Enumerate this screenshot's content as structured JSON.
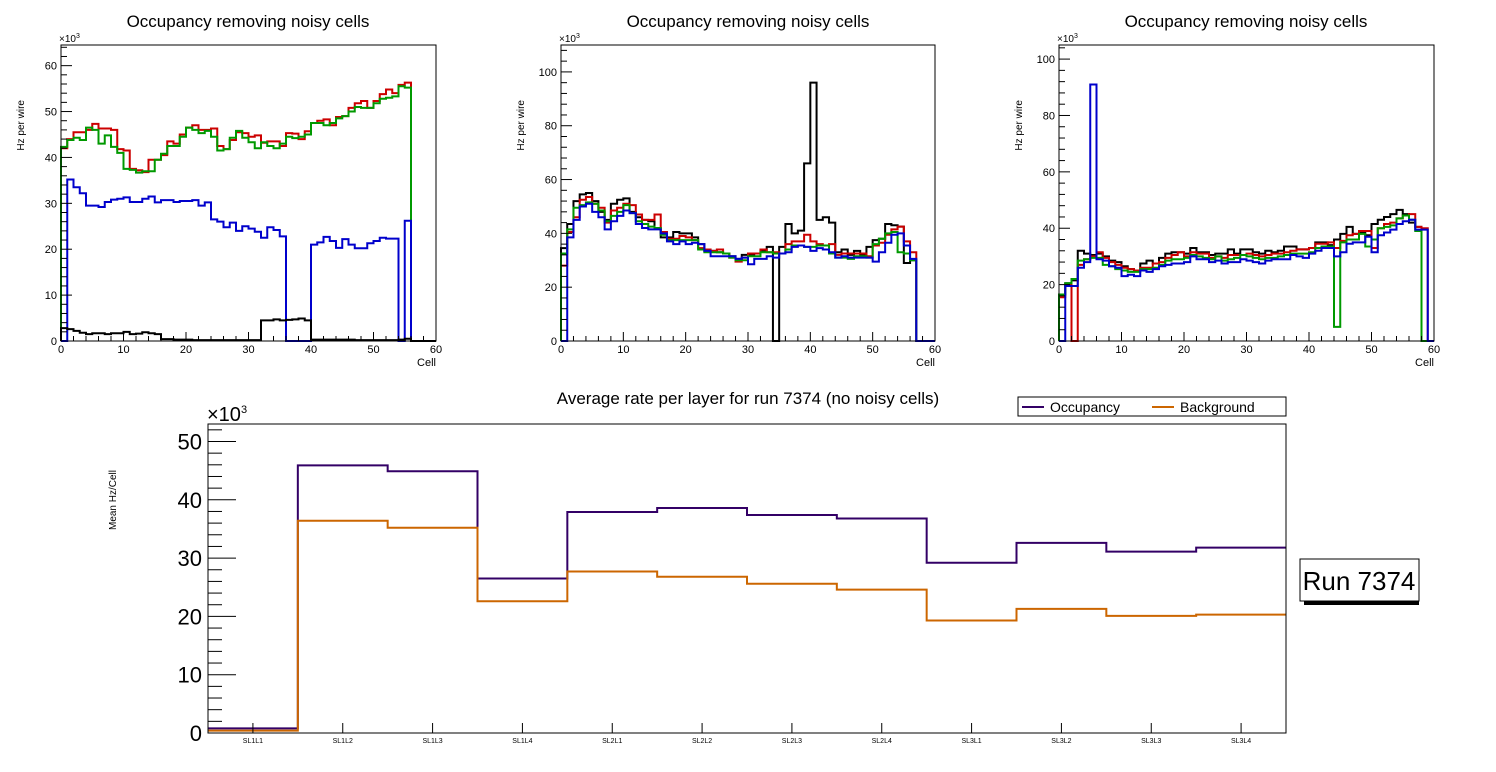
{
  "chart_data": [
    {
      "type": "line",
      "style": "step-histogram",
      "title": "Occupancy removing noisy cells",
      "xlabel": "Cell",
      "ylabel": "Hz per wire",
      "y_multiplier": "×10³",
      "xlim": [
        0,
        60
      ],
      "ylim": [
        0,
        64.5
      ],
      "xticks": [
        0,
        10,
        20,
        30,
        40,
        50,
        60
      ],
      "yticks": [
        0,
        10,
        20,
        30,
        40,
        50,
        60
      ],
      "series": [
        {
          "name": "red",
          "color": "#cc0000",
          "values": [
            42,
            44,
            45.5,
            45.5,
            46,
            47.3,
            46.3,
            46.3,
            46,
            41.8,
            41.5,
            37.5,
            37.2,
            36.8,
            39.5,
            39.5,
            40.5,
            43.5,
            43,
            45,
            46.5,
            47,
            46,
            46,
            46.3,
            42.5,
            41.8,
            43.8,
            45.5,
            45.3,
            44.5,
            44.8,
            43.2,
            43.5,
            43.5,
            42.5,
            45.3,
            45.2,
            44,
            45.7,
            47.5,
            48,
            48.3,
            47,
            48.8,
            49,
            50.8,
            51.8,
            52.3,
            50.8,
            52.3,
            53.8,
            54.8,
            54,
            55.8,
            56.3,
            0,
            0,
            0,
            0
          ]
        },
        {
          "name": "green",
          "color": "#009900",
          "values": [
            42.3,
            43.8,
            44.3,
            43.8,
            46.5,
            46,
            43,
            44.8,
            42.3,
            41,
            37.5,
            37.3,
            36.7,
            37,
            37,
            39.5,
            40.8,
            42.5,
            42.5,
            44.5,
            46.5,
            46,
            45.3,
            45.8,
            44.5,
            41.5,
            41.8,
            44.3,
            45.8,
            44.3,
            43.3,
            42,
            43.3,
            42.5,
            42,
            43,
            44.5,
            44.2,
            44.5,
            45,
            47.5,
            47.5,
            47,
            47.5,
            48.5,
            49,
            50,
            51,
            50.8,
            50.8,
            51.8,
            52.8,
            53,
            53.3,
            55.5,
            55.2,
            0,
            0,
            0,
            0
          ]
        },
        {
          "name": "blue",
          "color": "#0000cc",
          "values": [
            0,
            35.2,
            33.5,
            32.2,
            29.5,
            29.5,
            29.2,
            30.3,
            30.8,
            31,
            31.3,
            30.3,
            30.3,
            31,
            31.5,
            30.2,
            30.7,
            30.7,
            30.3,
            30.5,
            30.5,
            30.7,
            29.5,
            30.2,
            26.5,
            26,
            24.8,
            25.8,
            24,
            25,
            24.5,
            23.8,
            22.5,
            24.8,
            24.2,
            22.8,
            0,
            0,
            0,
            0,
            21,
            21.5,
            22.7,
            21.8,
            20.3,
            22.2,
            21,
            20.2,
            20.2,
            21.3,
            21.8,
            22.5,
            22.3,
            22.3,
            0,
            26.2,
            0,
            0,
            0,
            0
          ]
        },
        {
          "name": "black",
          "color": "#000000",
          "values": [
            2.8,
            2.6,
            2.2,
            1.8,
            1.5,
            1.7,
            1.7,
            1.5,
            1.7,
            1.7,
            2,
            1.5,
            1.6,
            1.9,
            1.7,
            1.5,
            0.4,
            0.4,
            0.3,
            0.3,
            0.3,
            0.2,
            0.2,
            0.2,
            0.2,
            0.2,
            0.2,
            0.2,
            0.2,
            0.2,
            0.2,
            0.2,
            4.5,
            4.5,
            4.7,
            4.5,
            4.6,
            4.7,
            4.9,
            4.5,
            0.3,
            0.3,
            0.3,
            0.3,
            0.3,
            0.3,
            0.3,
            0.2,
            0.2,
            0.2,
            0.2,
            0.2,
            0.2,
            0.2,
            0.3,
            0.5,
            0,
            0,
            0,
            0
          ]
        }
      ]
    },
    {
      "type": "line",
      "style": "step-histogram",
      "title": "Occupancy removing noisy cells",
      "xlabel": "Cell",
      "ylabel": "Hz per wire",
      "y_multiplier": "×10³",
      "xlim": [
        0,
        60
      ],
      "ylim": [
        0,
        110
      ],
      "xticks": [
        0,
        10,
        20,
        30,
        40,
        50,
        60
      ],
      "yticks": [
        0,
        20,
        40,
        60,
        80,
        100
      ],
      "series": [
        {
          "name": "black",
          "color": "#000000",
          "values": [
            34.5,
            43.5,
            52,
            54.5,
            55,
            52,
            48,
            45,
            51,
            52.5,
            53,
            48,
            46,
            45,
            44.5,
            42,
            38.5,
            38.5,
            40.5,
            40,
            40,
            38.5,
            36,
            33.5,
            33.5,
            33,
            32.5,
            31.5,
            30.5,
            32,
            32,
            32.5,
            33.5,
            35,
            0,
            35,
            43.5,
            40,
            41,
            66,
            96,
            45,
            46,
            44,
            33,
            34,
            32,
            33.5,
            32,
            35,
            37.5,
            38,
            43.5,
            43,
            42.5,
            29,
            30,
            0,
            0,
            0
          ]
        },
        {
          "name": "red",
          "color": "#cc0000",
          "values": [
            28,
            40.5,
            46,
            52.5,
            53.5,
            51,
            49.5,
            44,
            48.5,
            49.5,
            51,
            50.5,
            47,
            45,
            45,
            47,
            40.5,
            38,
            38,
            39,
            38.5,
            37.5,
            34.5,
            34,
            33.5,
            34,
            32.5,
            31,
            29.5,
            31,
            32.5,
            32.5,
            34,
            33,
            33,
            32.5,
            36,
            37,
            37,
            39.5,
            37,
            36,
            35.5,
            36,
            32,
            32.5,
            32.5,
            32.5,
            32.5,
            31.5,
            35.5,
            36.5,
            39.5,
            41.5,
            42.5,
            37,
            33,
            0,
            0,
            0
          ]
        },
        {
          "name": "green",
          "color": "#009900",
          "values": [
            32.5,
            41.5,
            49.5,
            50.5,
            51.5,
            51,
            48.5,
            44.5,
            46.5,
            48,
            50.5,
            47.5,
            44.5,
            43.5,
            42.5,
            42,
            39.5,
            37.5,
            37.5,
            37.5,
            37.5,
            37.5,
            34,
            33,
            33,
            33,
            32.5,
            31,
            30,
            30,
            31.5,
            31.5,
            33,
            33,
            32.5,
            32.5,
            34,
            35.5,
            35.5,
            35,
            35,
            35.5,
            35.5,
            32.5,
            31,
            31,
            30.5,
            31.5,
            31.5,
            31,
            36,
            38,
            40,
            40.5,
            33,
            32.5,
            30,
            0,
            0,
            0
          ]
        },
        {
          "name": "blue",
          "color": "#0000cc",
          "values": [
            0,
            38.5,
            45,
            50,
            51,
            48,
            46,
            41.5,
            44.5,
            46.5,
            48.5,
            47.5,
            43.5,
            42,
            41.5,
            41.5,
            40,
            37,
            36,
            37,
            36,
            36.5,
            36,
            33.5,
            31.5,
            31.5,
            31.5,
            31.5,
            30.5,
            31,
            28.5,
            30.5,
            30.5,
            31.5,
            31,
            32.5,
            33,
            35,
            35.5,
            35,
            33.5,
            34.5,
            34,
            33,
            31,
            31.5,
            31,
            31,
            31,
            31,
            29.5,
            33,
            36.5,
            39.5,
            40,
            35.5,
            30.5,
            0,
            0,
            0
          ]
        }
      ]
    },
    {
      "type": "line",
      "style": "step-histogram",
      "title": "Occupancy removing noisy cells",
      "xlabel": "Cell",
      "ylabel": "Hz per wire",
      "y_multiplier": "×10³",
      "xlim": [
        0,
        60
      ],
      "ylim": [
        0,
        105
      ],
      "xticks": [
        0,
        10,
        20,
        30,
        40,
        50,
        60
      ],
      "yticks": [
        0,
        20,
        40,
        60,
        80,
        100
      ],
      "series": [
        {
          "name": "black",
          "color": "#000000",
          "values": [
            16.5,
            20.5,
            21.5,
            32,
            31,
            30.5,
            31,
            30,
            28.5,
            28,
            26.5,
            25.5,
            25,
            27.5,
            28.5,
            27.5,
            29.5,
            31,
            31.5,
            31.5,
            31,
            33,
            31.5,
            31.5,
            30.5,
            31,
            31,
            32.5,
            31,
            32.5,
            32.5,
            31.5,
            31,
            32,
            31.5,
            32,
            33.5,
            33.5,
            32.5,
            32.5,
            33,
            35,
            35,
            34,
            36,
            38,
            40.5,
            38,
            38.5,
            37.5,
            41.5,
            43,
            44,
            45,
            46.5,
            45,
            42,
            40.5,
            0,
            0
          ]
        },
        {
          "name": "red",
          "color": "#cc0000",
          "values": [
            15.5,
            20,
            0,
            27,
            29,
            30,
            31.5,
            29.5,
            28,
            27,
            26,
            25.5,
            25,
            26,
            26,
            27.5,
            28,
            29.5,
            30.5,
            31.5,
            30,
            31.5,
            31,
            31,
            29.5,
            30,
            29.5,
            30.5,
            30.5,
            30.5,
            31,
            30.5,
            30,
            30.5,
            31,
            31,
            31.5,
            32,
            32.5,
            32.5,
            33,
            34.5,
            34.5,
            35,
            33,
            35.5,
            37.5,
            38,
            39,
            39,
            33,
            40,
            41.5,
            42,
            43.5,
            44.5,
            45,
            40.5,
            40,
            0
          ]
        },
        {
          "name": "green",
          "color": "#009900",
          "values": [
            16.5,
            20.5,
            22,
            28.5,
            29,
            29.5,
            29.5,
            27,
            26.5,
            25.5,
            25,
            24.5,
            24.5,
            25.5,
            25.5,
            26,
            27,
            28.5,
            29,
            29,
            29.5,
            30.5,
            30,
            29.5,
            29,
            30,
            28.5,
            29,
            29.5,
            30.5,
            30,
            29.5,
            29,
            29.5,
            29.5,
            30,
            30.5,
            31,
            31,
            31,
            31.5,
            33,
            33.5,
            33.5,
            5,
            35,
            36,
            36,
            38,
            33.5,
            36,
            40,
            40.5,
            41,
            43.5,
            44.5,
            43,
            39,
            0,
            0
          ]
        },
        {
          "name": "blue",
          "color": "#0000cc",
          "values": [
            0,
            19.5,
            19.5,
            26,
            28,
            91,
            29,
            28.5,
            26.5,
            26,
            23,
            23.5,
            23,
            25,
            24.5,
            25.5,
            26.5,
            27,
            27.5,
            27.5,
            28,
            30,
            29,
            29,
            28,
            28.5,
            27.5,
            28,
            28,
            29,
            28.5,
            28,
            27.5,
            28.5,
            29,
            29,
            29,
            30.5,
            30,
            29.5,
            31,
            32,
            33,
            33,
            30,
            31.5,
            34.5,
            35,
            35,
            37,
            31.5,
            37.5,
            38.5,
            39.5,
            41.5,
            42.5,
            43,
            39.5,
            39.5,
            0
          ]
        }
      ]
    },
    {
      "type": "line",
      "style": "step-histogram",
      "title": "Average rate per layer for run 7374 (no noisy cells)",
      "xlabel": "",
      "ylabel": "Mean Hz/Cell",
      "y_multiplier": "×10³",
      "categories": [
        "SL1L1",
        "SL1L2",
        "SL1L3",
        "SL1L4",
        "SL2L1",
        "SL2L2",
        "SL2L3",
        "SL2L4",
        "SL3L1",
        "SL3L2",
        "SL3L3",
        "SL3L4"
      ],
      "ylim": [
        0,
        53
      ],
      "yticks": [
        0,
        10,
        20,
        30,
        40,
        50
      ],
      "legend": {
        "placement": "top-right",
        "entries": [
          "Occupancy",
          "Background"
        ]
      },
      "series": [
        {
          "name": "Occupancy",
          "color": "#330066",
          "values": [
            0.8,
            45.9,
            44.9,
            26.5,
            37.9,
            38.6,
            37.4,
            36.8,
            29.2,
            32.6,
            31.1,
            31.8
          ]
        },
        {
          "name": "Background",
          "color": "#cc6600",
          "values": [
            0.4,
            36.4,
            35.2,
            22.6,
            27.7,
            26.8,
            25.6,
            24.6,
            19.3,
            21.3,
            20.1,
            20.3
          ]
        }
      ],
      "annotation": "Run 7374"
    }
  ],
  "labels": {
    "multiplier": "×10",
    "exponent": "3"
  }
}
